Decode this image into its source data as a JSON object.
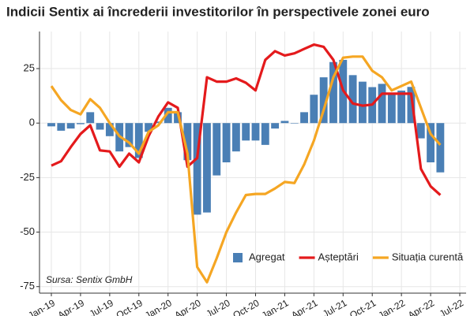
{
  "chart_data": {
    "type": "bar_line",
    "title": "Indicii Sentix ai încrederii investitorilor în perspectivele zonei euro",
    "source": "Sursa: Sentix GmbH",
    "categories": [
      "Jan-19",
      null,
      null,
      "Apr-19",
      null,
      null,
      "Jul-19",
      null,
      null,
      "Oct-19",
      null,
      null,
      "Jan-20",
      null,
      null,
      "Apr-20",
      null,
      null,
      "Jul-20",
      null,
      null,
      "Oct-20",
      null,
      null,
      "Jan-21",
      null,
      null,
      "Apr-21",
      null,
      null,
      "Jul-21",
      null,
      null,
      "Oct-21",
      null,
      null,
      "Jan-22",
      null,
      null,
      "Apr-22",
      null,
      null,
      "Jul-22"
    ],
    "series": [
      {
        "name": "Agregat",
        "type": "bar",
        "color": "#4a7fb5",
        "values": [
          -1.5,
          -3.5,
          -2.5,
          -0.5,
          5,
          -3,
          -6,
          -13,
          -11,
          -16,
          -4,
          0.7,
          7,
          5,
          -17,
          -42,
          -41,
          -24,
          -18,
          -13,
          -8,
          -8,
          -10,
          -2.5,
          1,
          -0.2,
          5,
          13,
          21,
          28,
          29,
          22,
          19,
          16.5,
          18,
          13.5,
          14.9,
          16.6,
          -7,
          -18,
          -22.6,
          null,
          null
        ]
      },
      {
        "name": "Așteptări",
        "type": "line",
        "color": "#e41a1c",
        "values": [
          -19.5,
          -17.5,
          -11,
          -5,
          -1,
          -12.5,
          -13,
          -20,
          -14,
          -18,
          -6,
          3,
          9.5,
          7,
          -20,
          -16,
          21,
          19,
          19,
          20.5,
          18.5,
          15,
          29,
          33,
          31,
          32,
          34,
          36,
          35,
          29,
          15,
          9,
          8,
          8.5,
          13.5,
          13.5,
          13.5,
          13.5,
          -21,
          -29,
          -33,
          null,
          null
        ]
      },
      {
        "name": "Situația curentă",
        "type": "line",
        "color": "#f5a623",
        "values": [
          17,
          10.5,
          6,
          4,
          11,
          7,
          0,
          -6,
          -9,
          -14,
          -4,
          -1,
          5,
          5,
          -14,
          -66,
          -73,
          -62,
          -50,
          -41,
          -33,
          -32.5,
          -32.5,
          -30,
          -27,
          -27.5,
          -19,
          -8,
          6,
          21,
          30,
          30.5,
          30.5,
          24,
          21,
          15,
          17,
          19,
          7,
          -5,
          -10,
          null,
          null
        ]
      }
    ],
    "ylim": [
      -78,
      42
    ],
    "yticks": [
      25,
      0,
      -25,
      -50,
      -75
    ],
    "grid": true,
    "legend": "bottom-right"
  }
}
